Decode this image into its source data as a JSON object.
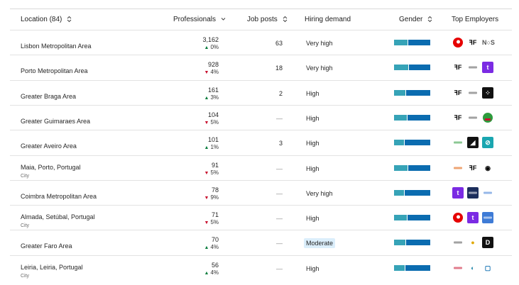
{
  "header": {
    "location": "Location (84)",
    "professionals": "Professionals",
    "job_posts": "Job posts",
    "hiring_demand": "Hiring demand",
    "gender": "Gender",
    "top_employers": "Top Employers"
  },
  "colors": {
    "up": "#0a7d3e",
    "down": "#c8102e",
    "gender_a": "#36a3b7",
    "gender_b": "#0b6cb0",
    "moderate_bg": "#dbeefb"
  },
  "rows": [
    {
      "location": "Lisbon Metropolitan Area",
      "sub": "",
      "professionals": "3,162",
      "change": "0%",
      "dir": "up",
      "job_posts": "63",
      "demand": "Very high",
      "gender_share": 0.38,
      "employers": [
        {
          "icon": "vodafone-logo",
          "label": "",
          "bg": "#ffffff",
          "fg": "#e60000"
        },
        {
          "icon": "farfetch-logo",
          "label": "ꟻF",
          "bg": "#ffffff",
          "fg": "#000"
        },
        {
          "icon": "nos-logo",
          "label": "N○S",
          "bg": "#ffffff",
          "fg": "#555"
        }
      ]
    },
    {
      "location": "Porto Metropolitan Area",
      "sub": "",
      "professionals": "928",
      "change": "4%",
      "dir": "down",
      "job_posts": "18",
      "demand": "Very high",
      "gender_share": 0.4,
      "employers": [
        {
          "icon": "farfetch-logo",
          "label": "ꟻF",
          "bg": "#ffffff",
          "fg": "#000"
        },
        {
          "icon": "company-logo",
          "label": "",
          "bg": "#ffffff",
          "fg": "#555"
        },
        {
          "icon": "talkdesk-logo",
          "label": "t",
          "bg": "#7b2be3",
          "fg": "#fff"
        }
      ]
    },
    {
      "location": "Greater Braga Area",
      "sub": "",
      "professionals": "161",
      "change": "3%",
      "dir": "up",
      "job_posts": "2",
      "demand": "High",
      "gender_share": 0.31,
      "employers": [
        {
          "icon": "farfetch-logo",
          "label": "ꟻF",
          "bg": "#ffffff",
          "fg": "#000"
        },
        {
          "icon": "company-logo",
          "label": "",
          "bg": "#ffffff",
          "fg": "#555"
        },
        {
          "icon": "dots-logo",
          "label": "⁘",
          "bg": "#111",
          "fg": "#fff"
        }
      ]
    },
    {
      "location": "Greater Guimaraes Area",
      "sub": "",
      "professionals": "104",
      "change": "5%",
      "dir": "down",
      "job_posts": "—",
      "demand": "High",
      "gender_share": 0.35,
      "employers": [
        {
          "icon": "farfetch-logo",
          "label": "ꟻF",
          "bg": "#ffffff",
          "fg": "#000"
        },
        {
          "icon": "company-logo",
          "label": "",
          "bg": "#ffffff",
          "fg": "#555"
        },
        {
          "icon": "sonae-logo",
          "label": "",
          "bg": "#ffffff",
          "fg": "#2d9b3d"
        }
      ]
    },
    {
      "location": "Greater Aveiro Area",
      "sub": "",
      "professionals": "101",
      "change": "1%",
      "dir": "up",
      "job_posts": "3",
      "demand": "High",
      "gender_share": 0.27,
      "employers": [
        {
          "icon": "company-logo",
          "label": "",
          "bg": "#ffffff",
          "fg": "#2d9b3d"
        },
        {
          "icon": "company-logo",
          "label": "◢",
          "bg": "#111",
          "fg": "#fff"
        },
        {
          "icon": "company-logo",
          "label": "⊘",
          "bg": "#1aa6b0",
          "fg": "#fff"
        }
      ]
    },
    {
      "location": "Maia, Porto, Portugal",
      "sub": "City",
      "professionals": "91",
      "change": "5%",
      "dir": "down",
      "job_posts": "—",
      "demand": "High",
      "gender_share": 0.38,
      "employers": [
        {
          "icon": "company-logo",
          "label": "",
          "bg": "#ffffff",
          "fg": "#e05a00"
        },
        {
          "icon": "farfetch-logo",
          "label": "ꟻF",
          "bg": "#ffffff",
          "fg": "#000"
        },
        {
          "icon": "company-logo",
          "label": "◉",
          "bg": "#ffffff",
          "fg": "#000"
        }
      ]
    },
    {
      "location": "Coimbra Metropolitan Area",
      "sub": "",
      "professionals": "78",
      "change": "9%",
      "dir": "down",
      "job_posts": "—",
      "demand": "Very high",
      "gender_share": 0.27,
      "employers": [
        {
          "icon": "talkdesk-logo",
          "label": "t",
          "bg": "#7b2be3",
          "fg": "#fff"
        },
        {
          "icon": "company-logo",
          "label": "",
          "bg": "#1c2e5c",
          "fg": "#fff"
        },
        {
          "icon": "company-logo",
          "label": "",
          "bg": "#ffffff",
          "fg": "#3e7bd6"
        }
      ]
    },
    {
      "location": "Almada, Setúbal, Portugal",
      "sub": "City",
      "professionals": "71",
      "change": "5%",
      "dir": "down",
      "job_posts": "—",
      "demand": "High",
      "gender_share": 0.35,
      "employers": [
        {
          "icon": "vodafone-logo",
          "label": "",
          "bg": "#ffffff",
          "fg": "#e60000"
        },
        {
          "icon": "talkdesk-logo",
          "label": "t",
          "bg": "#7b2be3",
          "fg": "#fff"
        },
        {
          "icon": "company-logo",
          "label": "",
          "bg": "#3e7bd6",
          "fg": "#fff"
        }
      ]
    },
    {
      "location": "Greater Faro Area",
      "sub": "",
      "professionals": "70",
      "change": "4%",
      "dir": "up",
      "job_posts": "—",
      "demand": "Moderate",
      "gender_share": 0.32,
      "employers": [
        {
          "icon": "company-logo",
          "label": "",
          "bg": "#ffffff",
          "fg": "#555"
        },
        {
          "icon": "company-logo",
          "label": "●",
          "bg": "#ffffff",
          "fg": "#e0a800"
        },
        {
          "icon": "company-logo",
          "label": "D",
          "bg": "#111",
          "fg": "#fff"
        }
      ]
    },
    {
      "location": "Leiria, Leiria, Portugal",
      "sub": "City",
      "professionals": "56",
      "change": "4%",
      "dir": "up",
      "job_posts": "—",
      "demand": "High",
      "gender_share": 0.3,
      "employers": [
        {
          "icon": "company-logo",
          "label": "",
          "bg": "#ffffff",
          "fg": "#c8102e"
        },
        {
          "icon": "company-logo",
          "label": "◐",
          "bg": "#ffffff",
          "fg": "#2288aa"
        },
        {
          "icon": "company-logo",
          "label": "▢",
          "bg": "#ffffff",
          "fg": "#0b6cb0"
        }
      ]
    }
  ]
}
